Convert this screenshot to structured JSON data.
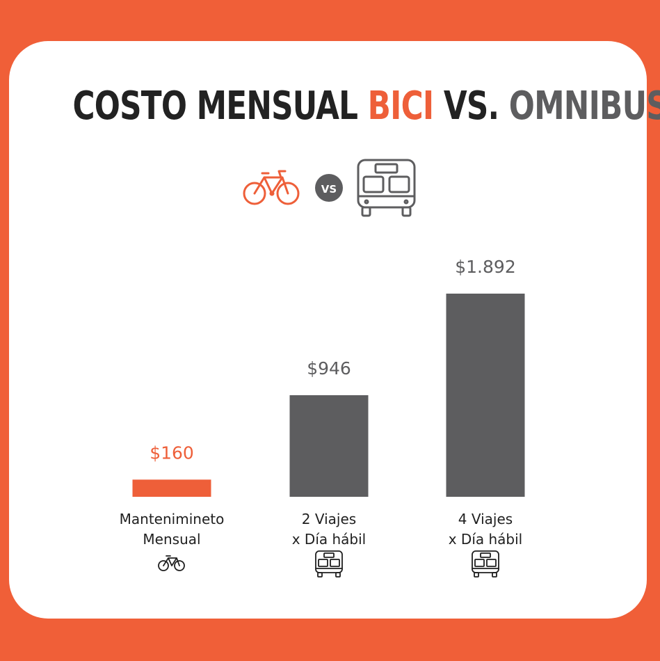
{
  "header": {
    "title_part1": "COSTO MENSUAL ",
    "title_part2": "BICI",
    "title_part3": " VS. ",
    "title_part4": "OMNIBUS",
    "vs_badge": "VS",
    "icons": [
      "bicycle-icon",
      "bus-icon"
    ]
  },
  "colors": {
    "background": "#f05f38",
    "bici": "#ee5f39",
    "omnibus": "#5d5d5f",
    "title": "#222222"
  },
  "chart_data": {
    "type": "bar",
    "title": "COSTO MENSUAL BICI VS. OMNIBUS",
    "xlabel": "",
    "ylabel": "",
    "grid": false,
    "ylim": [
      0,
      1892
    ],
    "categories": [
      [
        "Mantenimineto",
        "Mensual"
      ],
      [
        "2 Viajes",
        "x Día hábil"
      ],
      [
        "4 Viajes",
        "x Día hábil"
      ]
    ],
    "values": [
      160,
      946,
      1892
    ],
    "value_labels": [
      "$160",
      "$946",
      "$1.892"
    ],
    "category_icons": [
      "bicycle-icon",
      "bus-icon",
      "bus-icon"
    ],
    "bar_colors": [
      "#ee5f39",
      "#5d5d5f",
      "#5d5d5f"
    ]
  }
}
